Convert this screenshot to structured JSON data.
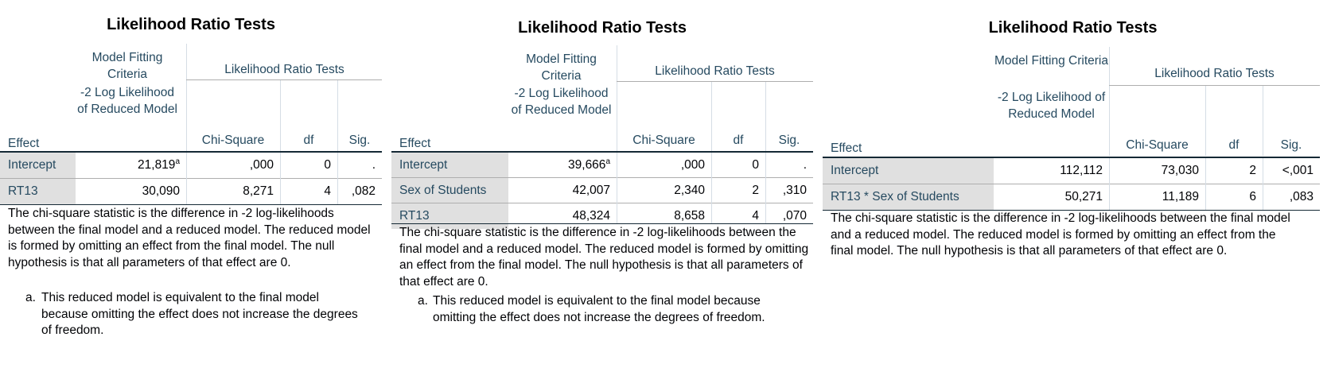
{
  "tables": [
    {
      "title": "Likelihood Ratio Tests",
      "header_group_1": "Model Fitting Criteria",
      "header_group_2": "Likelihood Ratio Tests",
      "col_effect": "Effect",
      "col_neg2ll": "-2 Log Likelihood of Reduced Model",
      "col_chisq": "Chi-Square",
      "col_df": "df",
      "col_sig": "Sig.",
      "rows": [
        {
          "effect": "Intercept",
          "neg2ll": "21,819",
          "sup": "a",
          "chisq": ",000",
          "df": "0",
          "sig": "."
        },
        {
          "effect": "RT13",
          "neg2ll": "30,090",
          "sup": "",
          "chisq": "8,271",
          "df": "4",
          "sig": ",082"
        }
      ],
      "footnote": "The chi-square statistic is the difference in -2 log-likelihoods between the final model and a reduced model. The reduced model is formed by omitting an effect from the final model. The null hypothesis is that all parameters of that effect are 0.",
      "footnote_a_mark": "a.",
      "footnote_a": "This reduced model is equivalent to the final model because omitting the effect does not increase the degrees of freedom."
    },
    {
      "title": "Likelihood Ratio Tests",
      "header_group_1": "Model Fitting Criteria",
      "header_group_2": "Likelihood Ratio Tests",
      "col_effect": "Effect",
      "col_neg2ll": "-2 Log Likelihood of Reduced Model",
      "col_chisq": "Chi-Square",
      "col_df": "df",
      "col_sig": "Sig.",
      "rows": [
        {
          "effect": "Intercept",
          "neg2ll": "39,666",
          "sup": "a",
          "chisq": ",000",
          "df": "0",
          "sig": "."
        },
        {
          "effect": "Sex of Students",
          "neg2ll": "42,007",
          "sup": "",
          "chisq": "2,340",
          "df": "2",
          "sig": ",310"
        },
        {
          "effect": "RT13",
          "neg2ll": "48,324",
          "sup": "",
          "chisq": "8,658",
          "df": "4",
          "sig": ",070"
        }
      ],
      "footnote": "The chi-square statistic is the difference in -2 log-likelihoods between the final model and a reduced model. The reduced model is formed by omitting an effect from the final model. The null hypothesis is that all parameters of that effect are 0.",
      "footnote_a_mark": "a.",
      "footnote_a": "This reduced model is equivalent to the final model because omitting the effect does not increase the degrees of freedom."
    },
    {
      "title": "Likelihood Ratio Tests",
      "header_group_1": "Model Fitting Criteria",
      "header_group_2": "Likelihood Ratio Tests",
      "col_effect": "Effect",
      "col_neg2ll": "-2 Log Likelihood of Reduced Model",
      "col_chisq": "Chi-Square",
      "col_df": "df",
      "col_sig": "Sig.",
      "rows": [
        {
          "effect": "Intercept",
          "neg2ll": "112,112",
          "sup": "",
          "chisq": "73,030",
          "df": "2",
          "sig": "<,001"
        },
        {
          "effect": "RT13 * Sex of Students",
          "neg2ll": "50,271",
          "sup": "",
          "chisq": "11,189",
          "df": "6",
          "sig": ",083"
        }
      ],
      "footnote": "The chi-square statistic is the difference in -2 log-likelihoods between the final model and a reduced model. The reduced model is formed by omitting an effect from the final model. The null hypothesis is that all parameters of that effect are 0."
    }
  ]
}
